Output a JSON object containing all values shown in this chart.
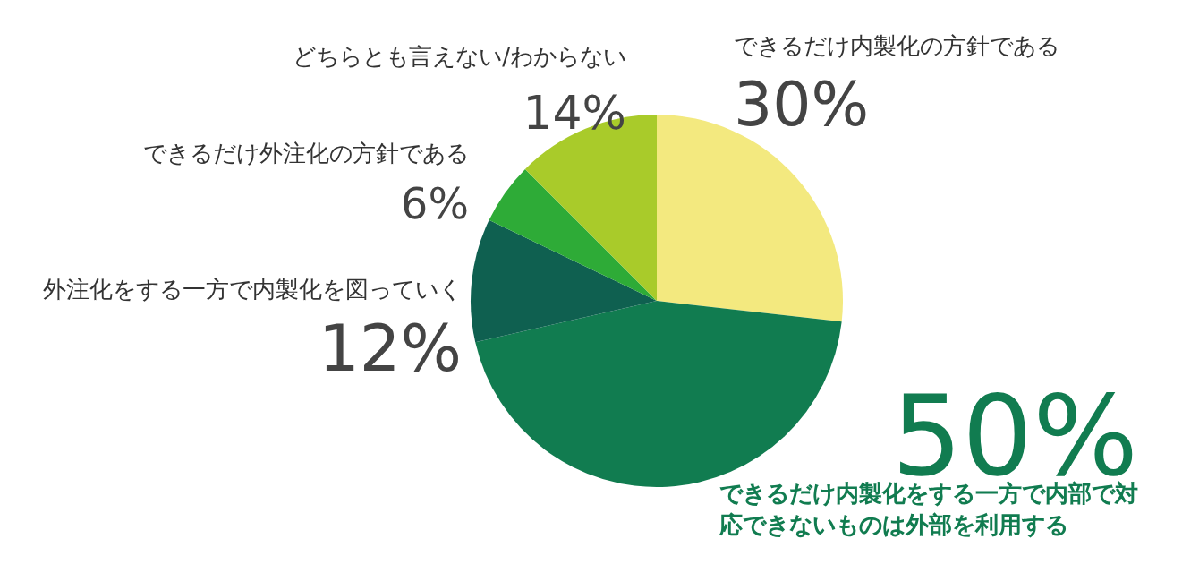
{
  "chart_data": {
    "type": "pie",
    "categories": [
      "できるだけ内製化の方針である",
      "できるだけ内製化をする一方で内部で対応できないものは外部を利用する",
      "外注化をする一方で内製化を図っていく",
      "できるだけ外注化の方針である",
      "どちらとも言えない/わからない"
    ],
    "values": [
      30,
      50,
      12,
      6,
      14
    ],
    "value_labels": [
      "30%",
      "50%",
      "12%",
      "6%",
      "14%"
    ],
    "colors": [
      "#f3e97f",
      "#117c50",
      "#0f6050",
      "#2eab37",
      "#a9cb2a"
    ]
  }
}
